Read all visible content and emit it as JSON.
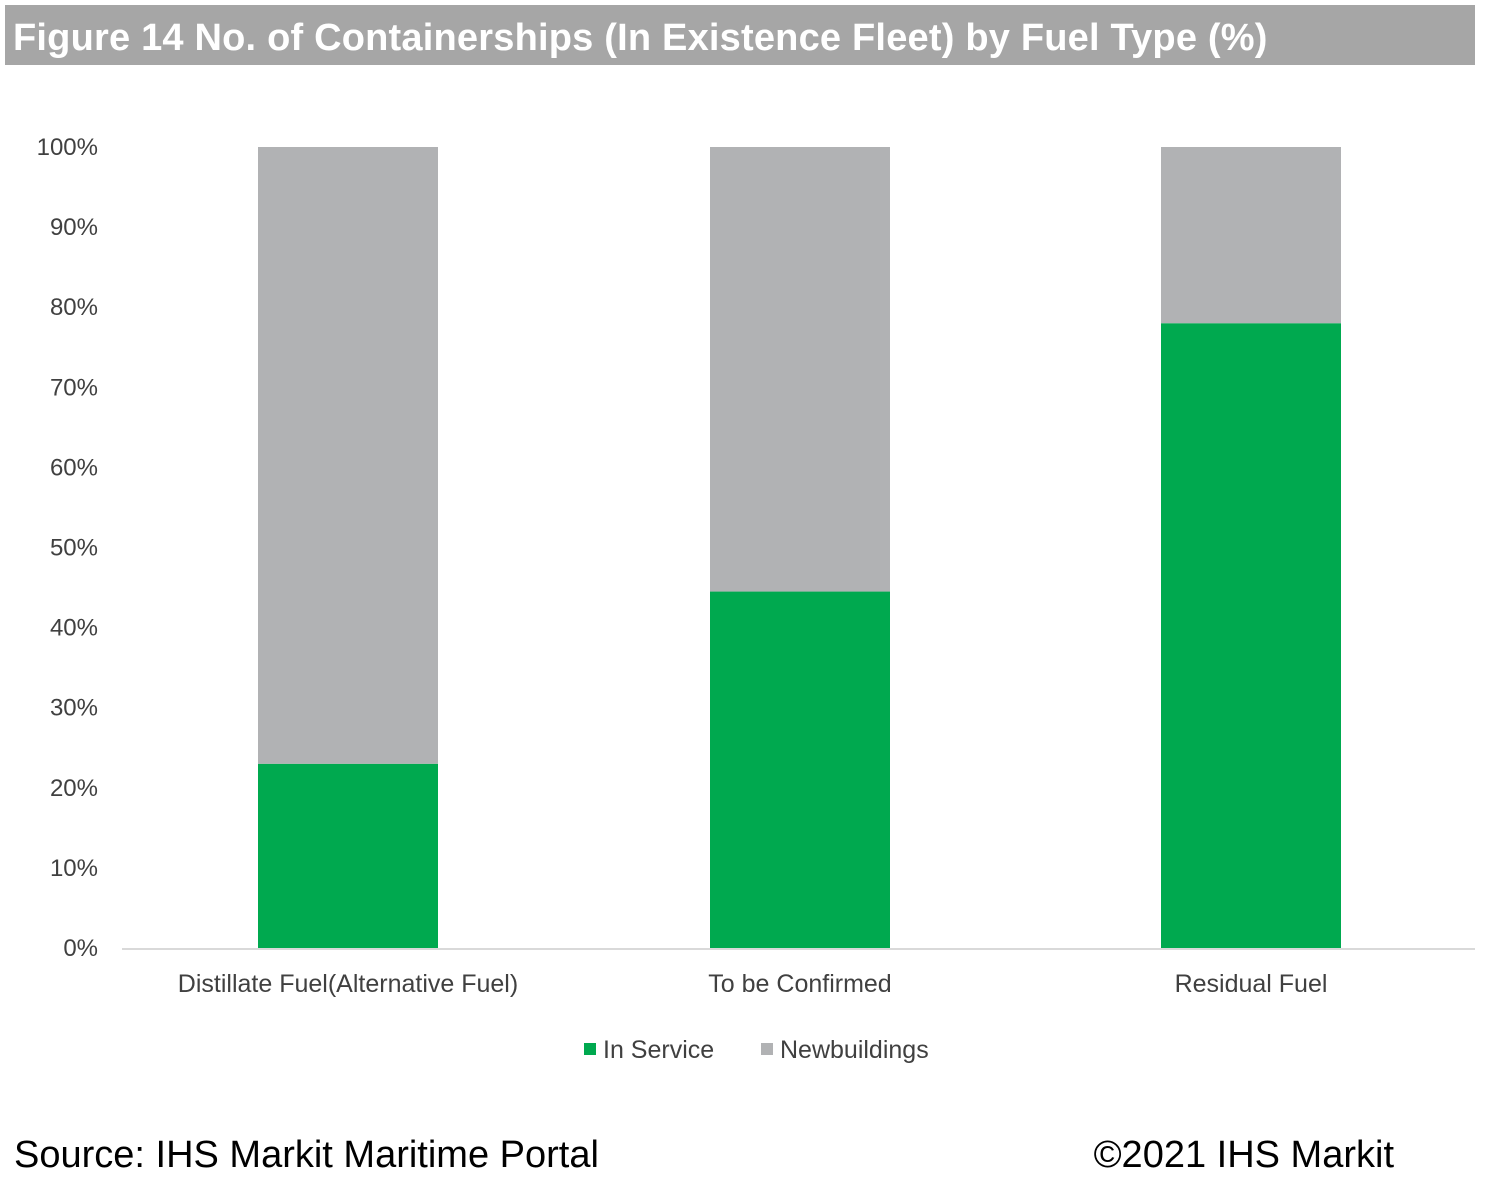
{
  "title": "Figure 14 No. of Containerships (In Existence Fleet) by Fuel Type (%)",
  "footer": {
    "source": "Source: IHS Markit Maritime Portal",
    "copyright": "©2021 IHS Markit"
  },
  "colors": {
    "in_service": "#00a94f",
    "newbuildings": "#b1b2b4",
    "title_bar": "#a6a6a6",
    "axis_line": "#d9d9d9"
  },
  "chart_data": {
    "type": "bar",
    "stacked": true,
    "categories": [
      "Distillate Fuel(Alternative Fuel)",
      "To be Confirmed",
      "Residual Fuel"
    ],
    "series": [
      {
        "name": "In Service",
        "values": [
          23,
          44.5,
          78
        ]
      },
      {
        "name": "Newbuildings",
        "values": [
          77,
          55.5,
          22
        ]
      }
    ],
    "ylim": [
      0,
      100
    ],
    "yticks": [
      "0%",
      "10%",
      "20%",
      "30%",
      "40%",
      "50%",
      "60%",
      "70%",
      "80%",
      "90%",
      "100%"
    ],
    "grid": false,
    "legend": "bottom"
  }
}
